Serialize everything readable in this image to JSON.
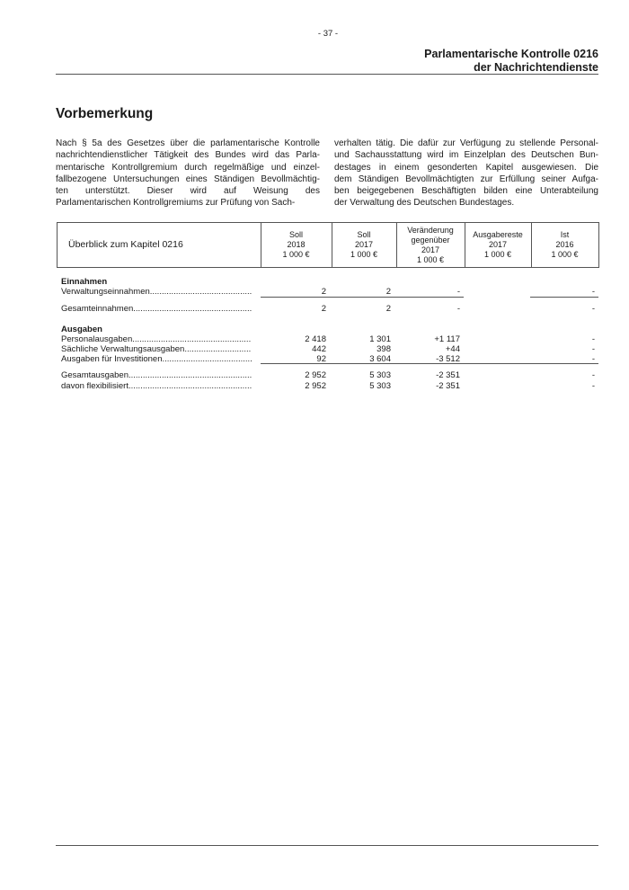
{
  "page_number": "- 37 -",
  "header": {
    "line1": "Parlamentarische Kontrolle   0216",
    "line2": "der Nachrichtendienste"
  },
  "section_title": "Vorbemerkung",
  "body": {
    "left_lines": [
      "Nach § 5a des Gesetzes über die parlamentarische Kontrolle",
      "nachrichtendienstlicher Tätigkeit des Bundes wird das Parla-",
      "mentarische Kontrollgremium durch regelmäßige und einzel-",
      "fallbezogene Untersuchungen eines Ständigen Bevollmächtig-",
      "ten unterstützt. Dieser wird auf Weisung des",
      "Parlamentarischen Kontrollgremiums zur Prüfung von Sach-"
    ],
    "right_lines": [
      "verhalten tätig. Die dafür zur Verfügung zu stellende Personal-",
      "und Sachausstattung wird im Einzelplan des Deutschen Bun-",
      "destages in einem gesonderten Kapitel ausgewiesen. Die",
      "dem Ständigen Bevollmächtigten zur Erfüllung seiner Aufga-",
      "ben beigegebenen Beschäftigten bilden eine Unterabteilung",
      "der Verwaltung des Deutschen Bundestages."
    ]
  },
  "table": {
    "title": "Überblick zum Kapitel 0216",
    "columns": [
      [
        "Soll",
        "2018",
        "1 000 €"
      ],
      [
        "Soll",
        "2017",
        "1 000 €"
      ],
      [
        "Veränderung",
        "gegenüber",
        "2017",
        "1 000 €"
      ],
      [
        "Ausgabereste",
        "2017",
        "1 000 €"
      ],
      [
        "Ist",
        "2016",
        "1 000 €"
      ]
    ],
    "sections": [
      {
        "heading": "Einnahmen",
        "rows": [
          {
            "label": "Verwaltungseinnahmen",
            "soll2018": "2",
            "soll2017": "2",
            "veraenderung": "-",
            "ausgabereste": "",
            "ist2016": "-"
          },
          {
            "label": "Gesamteinnahmen",
            "soll2018": "2",
            "soll2017": "2",
            "veraenderung": "-",
            "ausgabereste": "",
            "ist2016": "-"
          }
        ]
      },
      {
        "heading": "Ausgaben",
        "rows": [
          {
            "label": "Personalausgaben",
            "soll2018": "2 418",
            "soll2017": "1 301",
            "veraenderung": "+1 117",
            "ausgabereste": "",
            "ist2016": "-"
          },
          {
            "label": "Sächliche Verwaltungsausgaben",
            "soll2018": "442",
            "soll2017": "398",
            "veraenderung": "+44",
            "ausgabereste": "",
            "ist2016": "-"
          },
          {
            "label": "Ausgaben für Investitionen",
            "soll2018": "92",
            "soll2017": "3 604",
            "veraenderung": "-3 512",
            "ausgabereste": "",
            "ist2016": "-"
          },
          {
            "label": "Gesamtausgaben",
            "soll2018": "2 952",
            "soll2017": "5 303",
            "veraenderung": "-2 351",
            "ausgabereste": "",
            "ist2016": "-"
          },
          {
            "label": "davon flexibilisiert",
            "soll2018": "2 952",
            "soll2017": "5 303",
            "veraenderung": "-2 351",
            "ausgabereste": "",
            "ist2016": "-"
          }
        ]
      }
    ]
  }
}
